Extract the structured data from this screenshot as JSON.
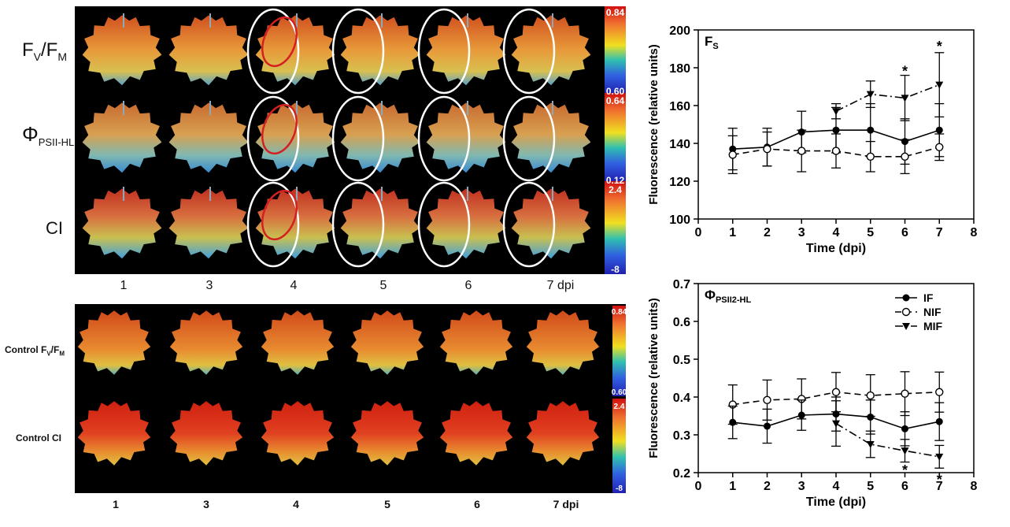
{
  "top_panel": {
    "row_labels": [
      "F",
      "Φ",
      "CI"
    ],
    "row_label_subs": [
      "V",
      "PSII-HL",
      ""
    ],
    "row_label_suffix": [
      "/F",
      "",
      ""
    ],
    "row_label_sub2": [
      "M",
      "",
      ""
    ],
    "days": [
      "1",
      "3",
      "4",
      "5",
      "6",
      "7 dpi"
    ],
    "colorbars": [
      {
        "top": "0.84",
        "bottom": "0.60"
      },
      {
        "top": "0.64",
        "bottom": "0.12"
      },
      {
        "top": "2.4",
        "bottom": "-8"
      }
    ]
  },
  "bottom_panel": {
    "row_label_1_main": "Control F",
    "row_label_1_sub": "V",
    "row_label_1_suffix": "/F",
    "row_label_1_sub2": "M",
    "row_label_2": "Control CI",
    "days": [
      "1",
      "3",
      "4",
      "5",
      "6",
      "7 dpi"
    ],
    "colorbars": [
      {
        "top": "0.84",
        "bottom": "0.60"
      },
      {
        "top": "2.4",
        "bottom": "-8"
      }
    ]
  },
  "colors": {
    "red_outline": "#d42020",
    "white_outline": "#ffffff"
  },
  "chart_data": [
    {
      "type": "line",
      "title_main": "F",
      "title_sub": "S",
      "xlabel": "Time (dpi)",
      "ylabel": "Fluorescence (relative units)",
      "xlim": [
        0,
        8
      ],
      "ylim": [
        100,
        200
      ],
      "xticks": [
        0,
        1,
        2,
        3,
        4,
        5,
        6,
        7,
        8
      ],
      "yticks": [
        100,
        120,
        140,
        160,
        180,
        200
      ],
      "series": [
        {
          "name": "IF",
          "marker": "filled-circle",
          "dash": "solid",
          "x": [
            1,
            2,
            3,
            4,
            5,
            6,
            7
          ],
          "y": [
            137,
            138,
            146,
            147,
            147,
            141,
            147
          ],
          "err": [
            11,
            10,
            11,
            12,
            14,
            12,
            14
          ]
        },
        {
          "name": "NIF",
          "marker": "open-circle",
          "dash": "dashed",
          "x": [
            1,
            2,
            3,
            4,
            5,
            6,
            7
          ],
          "y": [
            134,
            137,
            136,
            136,
            133,
            133,
            138
          ],
          "err": [
            10,
            9,
            11,
            9,
            8,
            9,
            7
          ]
        },
        {
          "name": "MIF",
          "marker": "triangle-down",
          "dash": "dashdot",
          "x": [
            4,
            5,
            6,
            7
          ],
          "y": [
            157,
            166,
            164,
            171
          ],
          "err": [
            4,
            7,
            12,
            17
          ]
        }
      ],
      "annotations": [
        {
          "x": 6,
          "y": 179,
          "text": "*"
        },
        {
          "x": 7,
          "y": 192,
          "text": "*"
        }
      ]
    },
    {
      "type": "line",
      "title_main": "Φ",
      "title_sub": "PSII2-HL",
      "xlabel": "Time (dpi)",
      "ylabel": "Fluorescence (relative units)",
      "xlim": [
        0,
        8
      ],
      "ylim": [
        0.2,
        0.7
      ],
      "xticks": [
        0,
        1,
        2,
        3,
        4,
        5,
        6,
        7,
        8
      ],
      "yticks": [
        0.2,
        0.3,
        0.4,
        0.5,
        0.6,
        0.7
      ],
      "legend": "top-right",
      "series": [
        {
          "name": "IF",
          "marker": "filled-circle",
          "dash": "solid",
          "x": [
            1,
            2,
            3,
            4,
            5,
            6,
            7
          ],
          "y": [
            0.333,
            0.323,
            0.352,
            0.355,
            0.347,
            0.316,
            0.335
          ],
          "err": [
            0.043,
            0.045,
            0.04,
            0.045,
            0.045,
            0.045,
            0.05
          ]
        },
        {
          "name": "NIF",
          "marker": "open-circle",
          "dash": "dashed",
          "x": [
            1,
            2,
            3,
            4,
            5,
            6,
            7
          ],
          "y": [
            0.38,
            0.392,
            0.395,
            0.413,
            0.404,
            0.409,
            0.413
          ],
          "err": [
            0.052,
            0.053,
            0.053,
            0.052,
            0.055,
            0.058,
            0.053
          ]
        },
        {
          "name": "MIF",
          "marker": "triangle-down",
          "dash": "dashdot",
          "x": [
            4,
            5,
            6,
            7
          ],
          "y": [
            0.33,
            0.275,
            0.258,
            0.242
          ],
          "err": [
            0.06,
            0.035,
            0.03,
            0.03
          ]
        }
      ],
      "annotations": [
        {
          "x": 6,
          "y": 0.21,
          "text": "*"
        },
        {
          "x": 7,
          "y": 0.185,
          "text": "*"
        }
      ]
    }
  ]
}
